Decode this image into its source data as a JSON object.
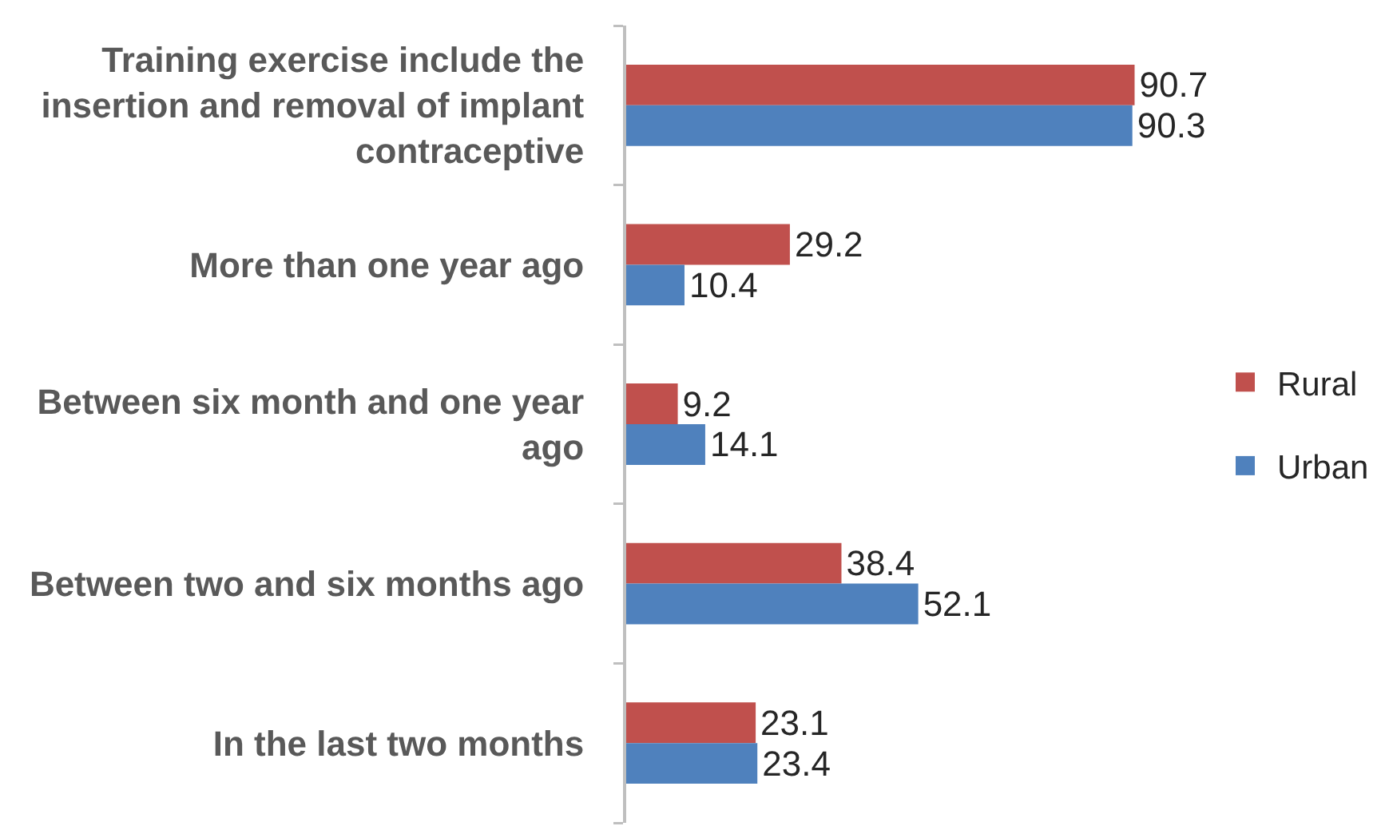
{
  "chart_data": {
    "type": "bar",
    "orientation": "horizontal",
    "categories": [
      "Training exercise include the insertion and removal of implant contraceptive",
      "More than one year ago",
      "Between six month and one year ago",
      "Between two and six months ago",
      "In the last two months"
    ],
    "series": [
      {
        "name": "Rural",
        "color": "#c0504d",
        "values": [
          90.7,
          29.2,
          9.2,
          38.4,
          23.1
        ]
      },
      {
        "name": "Urban",
        "color": "#4f81bd",
        "values": [
          90.3,
          10.4,
          14.1,
          52.1,
          23.4
        ]
      }
    ],
    "data_labels": true,
    "legend": "right",
    "tick_labels": "y"
  }
}
